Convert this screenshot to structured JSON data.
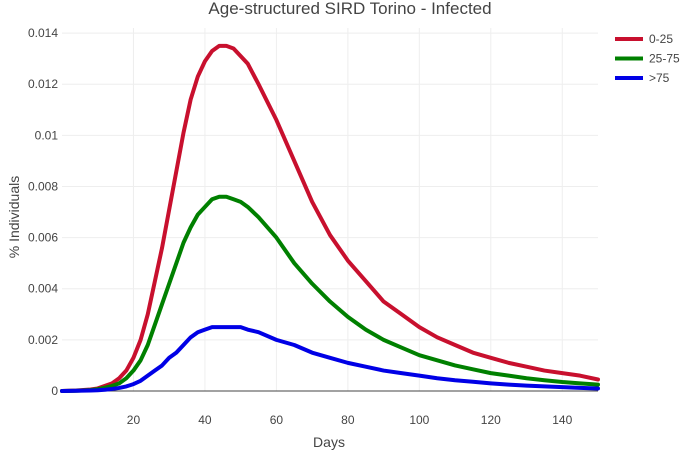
{
  "chart_data": {
    "type": "line",
    "title": "Age-structured SIRD Torino - Infected",
    "xlabel": "Days",
    "ylabel": "% Individuals",
    "xlim": [
      0,
      150
    ],
    "ylim": [
      0,
      0.0142
    ],
    "x_ticks": [
      20,
      40,
      60,
      80,
      100,
      120,
      140
    ],
    "y_ticks": [
      0,
      0.002,
      0.004,
      0.006,
      0.008,
      0.01,
      0.012,
      0.014
    ],
    "y_tick_labels": [
      "0",
      "0.002",
      "0.004",
      "0.006",
      "0.008",
      "0.01",
      "0.012",
      "0.014"
    ],
    "grid": true,
    "legend_position": "top-right",
    "x": [
      0,
      4,
      8,
      10,
      12,
      14,
      16,
      18,
      20,
      22,
      24,
      26,
      28,
      30,
      32,
      34,
      36,
      38,
      40,
      42,
      44,
      46,
      48,
      50,
      52,
      55,
      60,
      65,
      70,
      75,
      80,
      85,
      90,
      95,
      100,
      105,
      110,
      115,
      120,
      125,
      130,
      135,
      140,
      145,
      150
    ],
    "series": [
      {
        "name": "0-25",
        "color": "#c8102e",
        "values": [
          0,
          2e-05,
          6e-05,
          0.0001,
          0.0002,
          0.0003,
          0.0005,
          0.0008,
          0.0013,
          0.002,
          0.003,
          0.0043,
          0.0056,
          0.0071,
          0.0086,
          0.0101,
          0.0114,
          0.0123,
          0.0129,
          0.0133,
          0.0135,
          0.0135,
          0.0134,
          0.0131,
          0.0128,
          0.012,
          0.0106,
          0.009,
          0.0074,
          0.0061,
          0.0051,
          0.0043,
          0.0035,
          0.003,
          0.0025,
          0.0021,
          0.0018,
          0.0015,
          0.0013,
          0.0011,
          0.00095,
          0.0008,
          0.0007,
          0.0006,
          0.00045
        ]
      },
      {
        "name": "25-75",
        "color": "#008000",
        "values": [
          0,
          1e-05,
          4e-05,
          7e-05,
          0.00013,
          0.0002,
          0.0003,
          0.0005,
          0.0008,
          0.0012,
          0.0018,
          0.0026,
          0.0034,
          0.0042,
          0.005,
          0.0058,
          0.0064,
          0.0069,
          0.0072,
          0.0075,
          0.0076,
          0.0076,
          0.0075,
          0.0074,
          0.0072,
          0.0068,
          0.006,
          0.005,
          0.0042,
          0.0035,
          0.0029,
          0.0024,
          0.002,
          0.0017,
          0.0014,
          0.0012,
          0.001,
          0.00085,
          0.0007,
          0.0006,
          0.0005,
          0.00042,
          0.00035,
          0.0003,
          0.00025
        ]
      },
      {
        "name": ">75",
        "color": "#0000e6",
        "values": [
          0,
          1e-05,
          2e-05,
          3e-05,
          5e-05,
          8e-05,
          0.00012,
          0.00018,
          0.00027,
          0.0004,
          0.0006,
          0.0008,
          0.001,
          0.0013,
          0.0015,
          0.0018,
          0.0021,
          0.0023,
          0.0024,
          0.0025,
          0.0025,
          0.0025,
          0.0025,
          0.0025,
          0.0024,
          0.0023,
          0.002,
          0.0018,
          0.0015,
          0.0013,
          0.0011,
          0.00095,
          0.0008,
          0.0007,
          0.0006,
          0.0005,
          0.00042,
          0.00036,
          0.0003,
          0.00025,
          0.00021,
          0.00018,
          0.00015,
          0.00012,
          0.0001
        ]
      }
    ]
  }
}
